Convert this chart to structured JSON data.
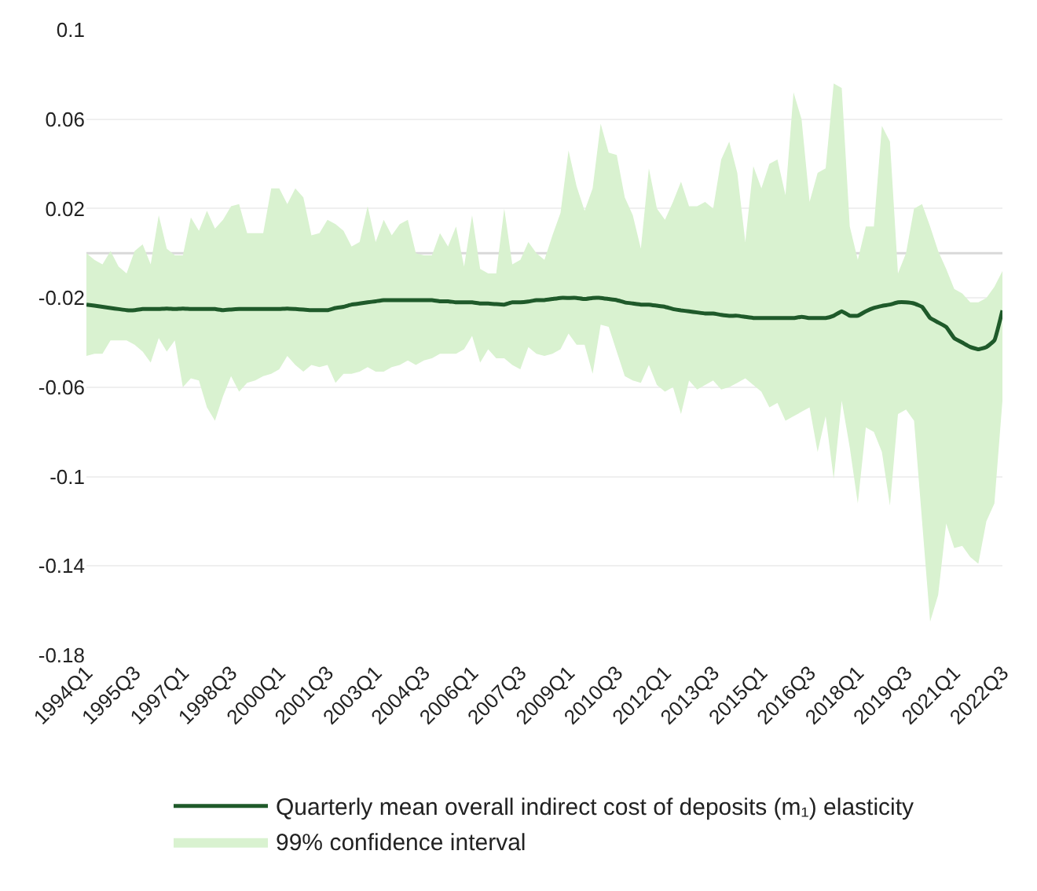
{
  "chart_data": {
    "type": "line",
    "categories": [
      "1994Q1",
      null,
      null,
      null,
      null,
      null,
      "1995Q3",
      null,
      null,
      null,
      null,
      null,
      "1997Q1",
      null,
      null,
      null,
      null,
      null,
      "1998Q3",
      null,
      null,
      null,
      null,
      null,
      "2000Q1",
      null,
      null,
      null,
      null,
      null,
      "2001Q3",
      null,
      null,
      null,
      null,
      null,
      "2003Q1",
      null,
      null,
      null,
      null,
      null,
      "2004Q3",
      null,
      null,
      null,
      null,
      null,
      "2006Q1",
      null,
      null,
      null,
      null,
      null,
      "2007Q3",
      null,
      null,
      null,
      null,
      null,
      "2009Q1",
      null,
      null,
      null,
      null,
      null,
      "2010Q3",
      null,
      null,
      null,
      null,
      null,
      "2012Q1",
      null,
      null,
      null,
      null,
      null,
      "2013Q3",
      null,
      null,
      null,
      null,
      null,
      "2015Q1",
      null,
      null,
      null,
      null,
      null,
      "2016Q3",
      null,
      null,
      null,
      null,
      null,
      "2018Q1",
      null,
      null,
      null,
      null,
      null,
      "2019Q3",
      null,
      null,
      null,
      null,
      null,
      "2021Q1",
      null,
      null,
      null,
      null,
      null,
      "2022Q3"
    ],
    "series": [
      {
        "name": "Quarterly mean overall indirect cost of deposits (m₁) elasticity",
        "color": "#1f5a2a",
        "upper": [
          0.0,
          -0.003,
          -0.005,
          0.001,
          -0.006,
          -0.009,
          0.001,
          0.004,
          -0.005,
          0.017,
          0.002,
          -0.001,
          -0.001,
          0.016,
          0.01,
          0.019,
          0.011,
          0.015,
          0.021,
          0.022,
          0.009,
          0.009,
          0.009,
          0.029,
          0.029,
          0.022,
          0.029,
          0.025,
          0.008,
          0.009,
          0.015,
          0.013,
          0.01,
          0.003,
          0.005,
          0.021,
          0.005,
          0.015,
          0.008,
          0.013,
          0.015,
          0.0,
          -0.001,
          -0.001,
          0.009,
          0.003,
          0.012,
          -0.006,
          0.017,
          -0.007,
          -0.009,
          -0.009,
          0.02,
          -0.005,
          -0.003,
          0.005,
          0.0,
          -0.003,
          0.008,
          0.018,
          0.046,
          0.03,
          0.019,
          0.029,
          0.058,
          0.045,
          0.044,
          0.025,
          0.017,
          0.002,
          0.038,
          0.02,
          0.015,
          0.023,
          0.032,
          0.021,
          0.021,
          0.023,
          0.02,
          0.042,
          0.05,
          0.036,
          0.005,
          0.039,
          0.029,
          0.04,
          0.042,
          0.026,
          0.072,
          0.06,
          0.023,
          0.036,
          0.038,
          0.076,
          0.074,
          0.012,
          -0.003,
          0.012,
          0.012,
          0.057,
          0.05,
          -0.009,
          0.0,
          0.02,
          0.022,
          0.012,
          0.001,
          -0.007,
          -0.016,
          -0.018,
          -0.022,
          -0.022,
          -0.02,
          -0.015,
          -0.008
        ],
        "lower": [
          -0.046,
          -0.045,
          -0.045,
          -0.039,
          -0.039,
          -0.039,
          -0.041,
          -0.044,
          -0.049,
          -0.038,
          -0.044,
          -0.039,
          -0.06,
          -0.056,
          -0.057,
          -0.069,
          -0.075,
          -0.064,
          -0.055,
          -0.062,
          -0.058,
          -0.057,
          -0.055,
          -0.054,
          -0.052,
          -0.046,
          -0.05,
          -0.053,
          -0.05,
          -0.051,
          -0.05,
          -0.058,
          -0.054,
          -0.054,
          -0.053,
          -0.051,
          -0.053,
          -0.053,
          -0.051,
          -0.05,
          -0.048,
          -0.05,
          -0.048,
          -0.047,
          -0.045,
          -0.045,
          -0.045,
          -0.043,
          -0.037,
          -0.049,
          -0.043,
          -0.047,
          -0.047,
          -0.05,
          -0.052,
          -0.042,
          -0.045,
          -0.046,
          -0.045,
          -0.043,
          -0.036,
          -0.041,
          -0.041,
          -0.054,
          -0.032,
          -0.033,
          -0.044,
          -0.055,
          -0.057,
          -0.058,
          -0.05,
          -0.059,
          -0.062,
          -0.06,
          -0.072,
          -0.057,
          -0.061,
          -0.059,
          -0.057,
          -0.061,
          -0.06,
          -0.058,
          -0.056,
          -0.059,
          -0.062,
          -0.069,
          -0.067,
          -0.075,
          -0.073,
          -0.071,
          -0.069,
          -0.089,
          -0.073,
          -0.101,
          -0.066,
          -0.087,
          -0.112,
          -0.078,
          -0.08,
          -0.089,
          -0.113,
          -0.072,
          -0.07,
          -0.075,
          -0.12,
          -0.165,
          -0.153,
          -0.121,
          -0.132,
          -0.131,
          -0.136,
          -0.139,
          -0.12,
          -0.112,
          -0.066
        ],
        "values": [
          -0.023,
          -0.0235,
          -0.024,
          -0.0245,
          -0.025,
          -0.0255,
          -0.0255,
          -0.025,
          -0.025,
          -0.025,
          -0.0248,
          -0.025,
          -0.0248,
          -0.025,
          -0.025,
          -0.025,
          -0.025,
          -0.0255,
          -0.0252,
          -0.025,
          -0.025,
          -0.025,
          -0.025,
          -0.025,
          -0.025,
          -0.0248,
          -0.025,
          -0.0252,
          -0.0255,
          -0.0255,
          -0.0255,
          -0.0245,
          -0.024,
          -0.023,
          -0.0225,
          -0.022,
          -0.0215,
          -0.021,
          -0.021,
          -0.021,
          -0.021,
          -0.021,
          -0.021,
          -0.021,
          -0.0215,
          -0.0215,
          -0.022,
          -0.022,
          -0.022,
          -0.0225,
          -0.0225,
          -0.0228,
          -0.023,
          -0.022,
          -0.022,
          -0.0216,
          -0.021,
          -0.021,
          -0.0205,
          -0.02,
          -0.02,
          -0.02,
          -0.0205,
          -0.02,
          -0.02,
          -0.0205,
          -0.021,
          -0.022,
          -0.0225,
          -0.023,
          -0.023,
          -0.0235,
          -0.024,
          -0.025,
          -0.0256,
          -0.026,
          -0.0265,
          -0.027,
          -0.027,
          -0.0276,
          -0.028,
          -0.028,
          -0.0285,
          -0.029,
          -0.029,
          -0.029,
          -0.029,
          -0.029,
          -0.029,
          -0.0285,
          -0.029,
          -0.029,
          -0.029,
          -0.028,
          -0.026,
          -0.028,
          -0.028,
          -0.026,
          -0.0245,
          -0.0236,
          -0.023,
          -0.022,
          -0.022,
          -0.0225,
          -0.024,
          -0.029,
          -0.031,
          -0.033,
          -0.038,
          -0.04,
          -0.042,
          -0.043,
          -0.042,
          -0.039,
          -0.0256
        ]
      }
    ],
    "ylim": [
      -0.18,
      0.1
    ],
    "yticks": [
      -0.18,
      -0.14,
      -0.1,
      -0.06,
      -0.02,
      0.02,
      0.06,
      0.1
    ],
    "annotations": [
      "99% confidence interval"
    ],
    "grid": "y",
    "legend": "bottom",
    "ref_lines": [
      {
        "axis": "y",
        "value": 0,
        "color": "#d9d9d9"
      }
    ]
  }
}
